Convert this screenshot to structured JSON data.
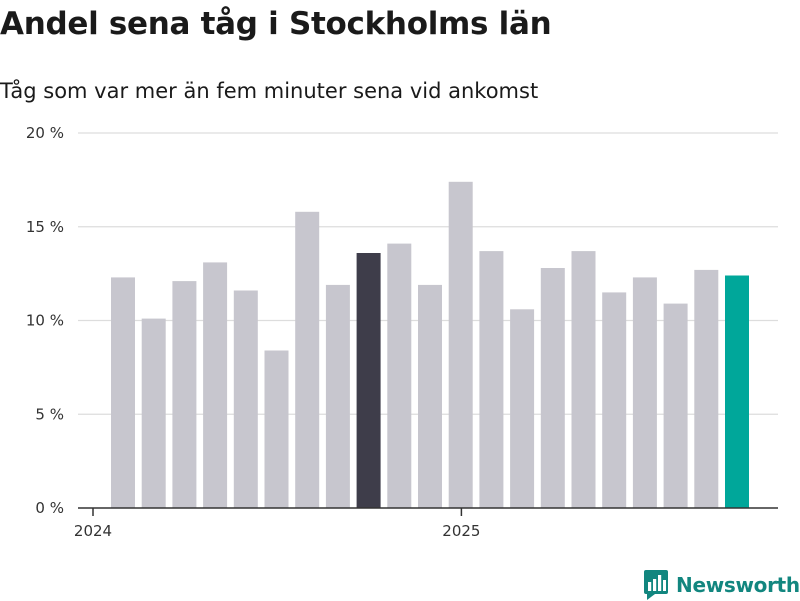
{
  "title": "Andel sena tåg i Stockholms län",
  "subtitle": "Tåg som var mer än fem minuter sena vid ankomst",
  "colors": {
    "bar": "#c7c6ce",
    "highlight_dark": "#3e3d4a",
    "highlight_accent": "#00a79a",
    "grid": "#dddddd",
    "axis": "#333333",
    "brand": "#12867f"
  },
  "chart_data": {
    "type": "bar",
    "title": "Andel sena tåg i Stockholms län",
    "subtitle": "Tåg som var mer än fem minuter sena vid ankomst",
    "xlabel": "",
    "ylabel": "",
    "unit": "%",
    "ylim": [
      0,
      20
    ],
    "y_ticks": [
      0,
      5,
      10,
      15,
      20
    ],
    "y_tick_labels": [
      "0 %",
      "5 %",
      "10 %",
      "15 %",
      "20 %"
    ],
    "x_tick_labels": [
      {
        "label": "2024",
        "at_index": 0
      },
      {
        "label": "2025",
        "at_index": 12
      }
    ],
    "grid": true,
    "series": [
      {
        "name": "Andel sena tåg",
        "values": [
          12.3,
          10.1,
          12.1,
          13.1,
          11.6,
          8.4,
          15.8,
          11.9,
          13.6,
          14.1,
          11.9,
          17.4,
          13.7,
          10.6,
          12.8,
          13.7,
          11.5,
          12.3,
          10.9,
          12.7,
          12.4
        ],
        "highlight": {
          "8": "highlight_dark",
          "20": "highlight_accent"
        }
      }
    ]
  },
  "logo": {
    "text": "Newsworthy"
  }
}
